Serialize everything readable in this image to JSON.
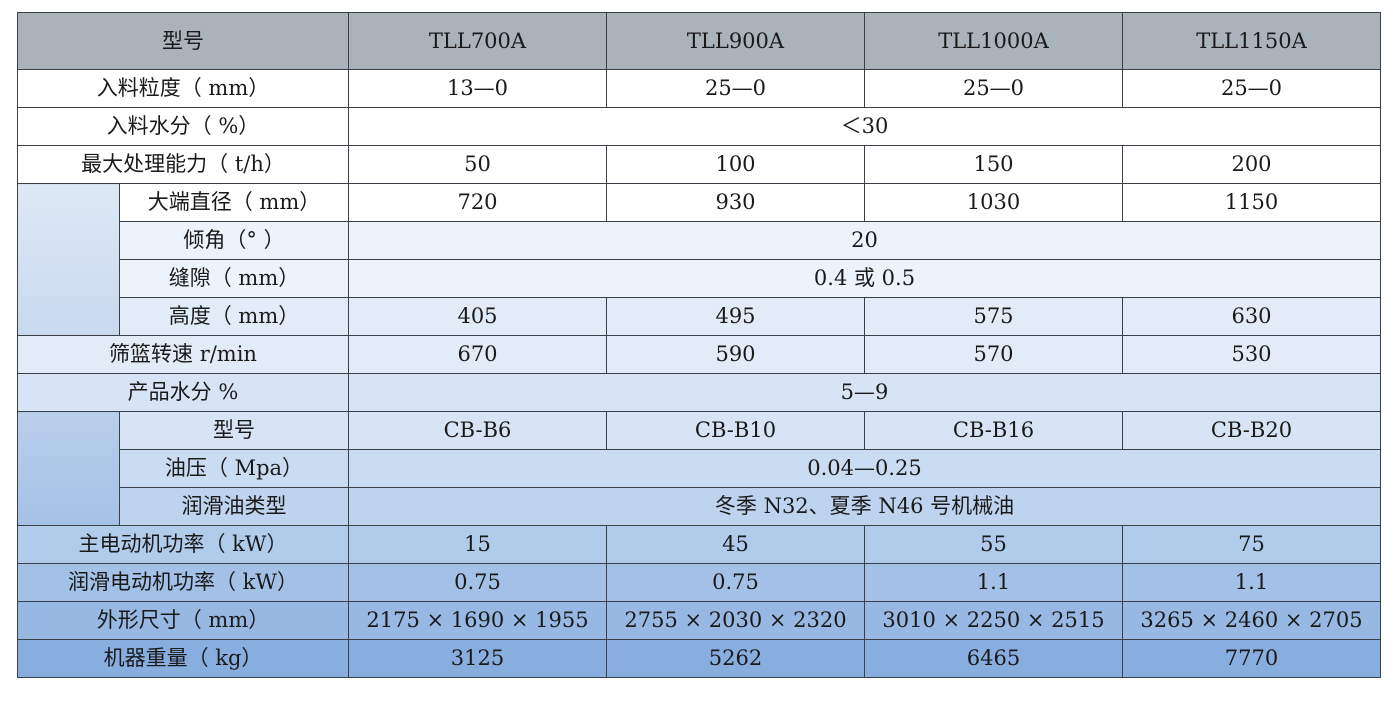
{
  "header": {
    "label": "型号",
    "models": [
      "TLL700A",
      "TLL900A",
      "TLL1000A",
      "TLL1150A"
    ]
  },
  "rows": {
    "feed_size": {
      "label": "入料粒度（ mm）",
      "values": [
        "13—0",
        "25—0",
        "25—0",
        "25—0"
      ]
    },
    "feed_moisture": {
      "label": "入料水分（ %）",
      "value": "＜30"
    },
    "max_capacity": {
      "label": "最大处理能力（ t/h）",
      "values": [
        "50",
        "100",
        "150",
        "200"
      ]
    },
    "large_end_diameter": {
      "label": "大端直径（ mm）",
      "values": [
        "720",
        "930",
        "1030",
        "1150"
      ]
    },
    "inclination": {
      "label": "倾角（° ）",
      "value": "20"
    },
    "gap": {
      "label": "缝隙（ mm）",
      "value": "0.4 或 0.5"
    },
    "height": {
      "label": "高度（ mm）",
      "values": [
        "405",
        "495",
        "575",
        "630"
      ]
    },
    "basket_speed": {
      "label": "筛篮转速 r/min",
      "values": [
        "670",
        "590",
        "570",
        "530"
      ]
    },
    "product_moisture": {
      "label": "产品水分 %",
      "value": "5—9"
    },
    "pump_model": {
      "label": "型号",
      "values": [
        "CB-B6",
        "CB-B10",
        "CB-B16",
        "CB-B20"
      ]
    },
    "oil_pressure": {
      "label": "油压（ Mpa）",
      "value": "0.04—0.25"
    },
    "lube_oil_type": {
      "label": "润滑油类型",
      "value": "冬季 N32、夏季 N46 号机械油"
    },
    "main_motor_power": {
      "label": "主电动机功率（ kW）",
      "values": [
        "15",
        "45",
        "55",
        "75"
      ]
    },
    "lube_motor_power": {
      "label": "润滑电动机功率（ kW）",
      "values": [
        "0.75",
        "0.75",
        "1.1",
        "1.1"
      ]
    },
    "dimensions": {
      "label": "外形尺寸（ mm）",
      "values": [
        "2175 × 1690 × 1955",
        "2755 × 2030 × 2320",
        "3010 × 2250 × 2515",
        "3265 × 2460 × 2705"
      ]
    },
    "machine_weight": {
      "label": "机器重量（ kg）",
      "values": [
        "3125",
        "5262",
        "6465",
        "7770"
      ]
    }
  }
}
